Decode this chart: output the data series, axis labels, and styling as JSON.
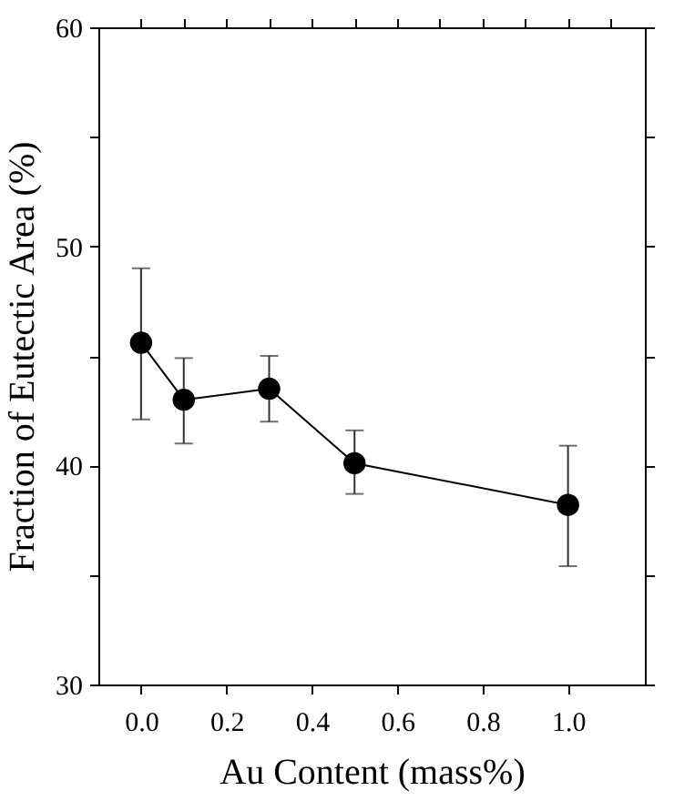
{
  "chart_data": {
    "type": "line",
    "xlabel": "Au Content (mass%)",
    "ylabel": "Fraction of Eutectic Area (%)",
    "x": [
      0.0,
      0.1,
      0.3,
      0.5,
      1.0
    ],
    "series": [
      {
        "color": "#000000",
        "values": [
          45.6,
          43.0,
          43.5,
          40.1,
          38.2
        ],
        "errors": [
          [
            42.1,
            49.0
          ],
          [
            41.0,
            44.9
          ],
          [
            42.0,
            45.0
          ],
          [
            38.7,
            41.6
          ],
          [
            35.4,
            40.9
          ]
        ]
      }
    ],
    "xlim": [
      -0.1,
      1.18
    ],
    "ylim": [
      30,
      60
    ],
    "xticks": [
      {
        "value": 0.0,
        "label": "0.0"
      },
      {
        "value": 0.1,
        "label": null
      },
      {
        "value": 0.2,
        "label": "0.2"
      },
      {
        "value": 0.3,
        "label": null
      },
      {
        "value": 0.4,
        "label": "0.4"
      },
      {
        "value": 0.5,
        "label": null
      },
      {
        "value": 0.6,
        "label": "0.6"
      },
      {
        "value": 0.7,
        "label": null
      },
      {
        "value": 0.8,
        "label": "0.8"
      },
      {
        "value": 0.9,
        "label": null
      },
      {
        "value": 1.0,
        "label": "1.0"
      },
      {
        "value": 1.1,
        "label": null
      }
    ],
    "yticks": [
      30,
      {
        "value": 35,
        "label": null
      },
      40,
      {
        "value": 45,
        "label": null
      },
      50,
      {
        "value": 55,
        "label": null
      },
      60
    ],
    "marker": "circle",
    "line_style": "solid",
    "grid": false
  }
}
